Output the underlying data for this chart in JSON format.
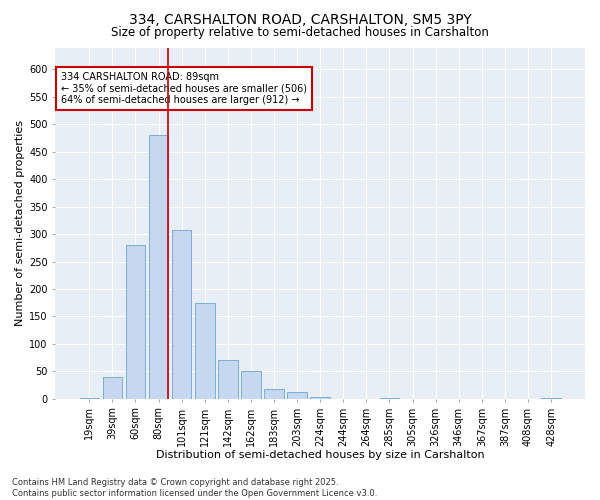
{
  "title": "334, CARSHALTON ROAD, CARSHALTON, SM5 3PY",
  "subtitle": "Size of property relative to semi-detached houses in Carshalton",
  "xlabel": "Distribution of semi-detached houses by size in Carshalton",
  "ylabel": "Number of semi-detached properties",
  "categories": [
    "19sqm",
    "39sqm",
    "60sqm",
    "80sqm",
    "101sqm",
    "121sqm",
    "142sqm",
    "162sqm",
    "183sqm",
    "203sqm",
    "224sqm",
    "244sqm",
    "264sqm",
    "285sqm",
    "305sqm",
    "326sqm",
    "346sqm",
    "367sqm",
    "387sqm",
    "408sqm",
    "428sqm"
  ],
  "values": [
    2,
    40,
    280,
    480,
    307,
    175,
    70,
    50,
    18,
    12,
    3,
    0,
    0,
    1,
    0,
    0,
    0,
    0,
    0,
    0,
    2
  ],
  "bar_color": "#c5d8ef",
  "bar_edge_color": "#7bafd4",
  "vline_color": "#cc0000",
  "vline_x_idx": 3,
  "annotation_text": "334 CARSHALTON ROAD: 89sqm\n← 35% of semi-detached houses are smaller (506)\n64% of semi-detached houses are larger (912) →",
  "annotation_box_facecolor": "#ffffff",
  "annotation_box_edgecolor": "#cc0000",
  "ylim": [
    0,
    640
  ],
  "yticks": [
    0,
    50,
    100,
    150,
    200,
    250,
    300,
    350,
    400,
    450,
    500,
    550,
    600
  ],
  "fig_bg_color": "#ffffff",
  "plot_bg_color": "#e8eef5",
  "title_fontsize": 10,
  "subtitle_fontsize": 8.5,
  "axis_label_fontsize": 8,
  "tick_fontsize": 7,
  "annotation_fontsize": 7,
  "footer_fontsize": 6,
  "footer": "Contains HM Land Registry data © Crown copyright and database right 2025.\nContains public sector information licensed under the Open Government Licence v3.0."
}
